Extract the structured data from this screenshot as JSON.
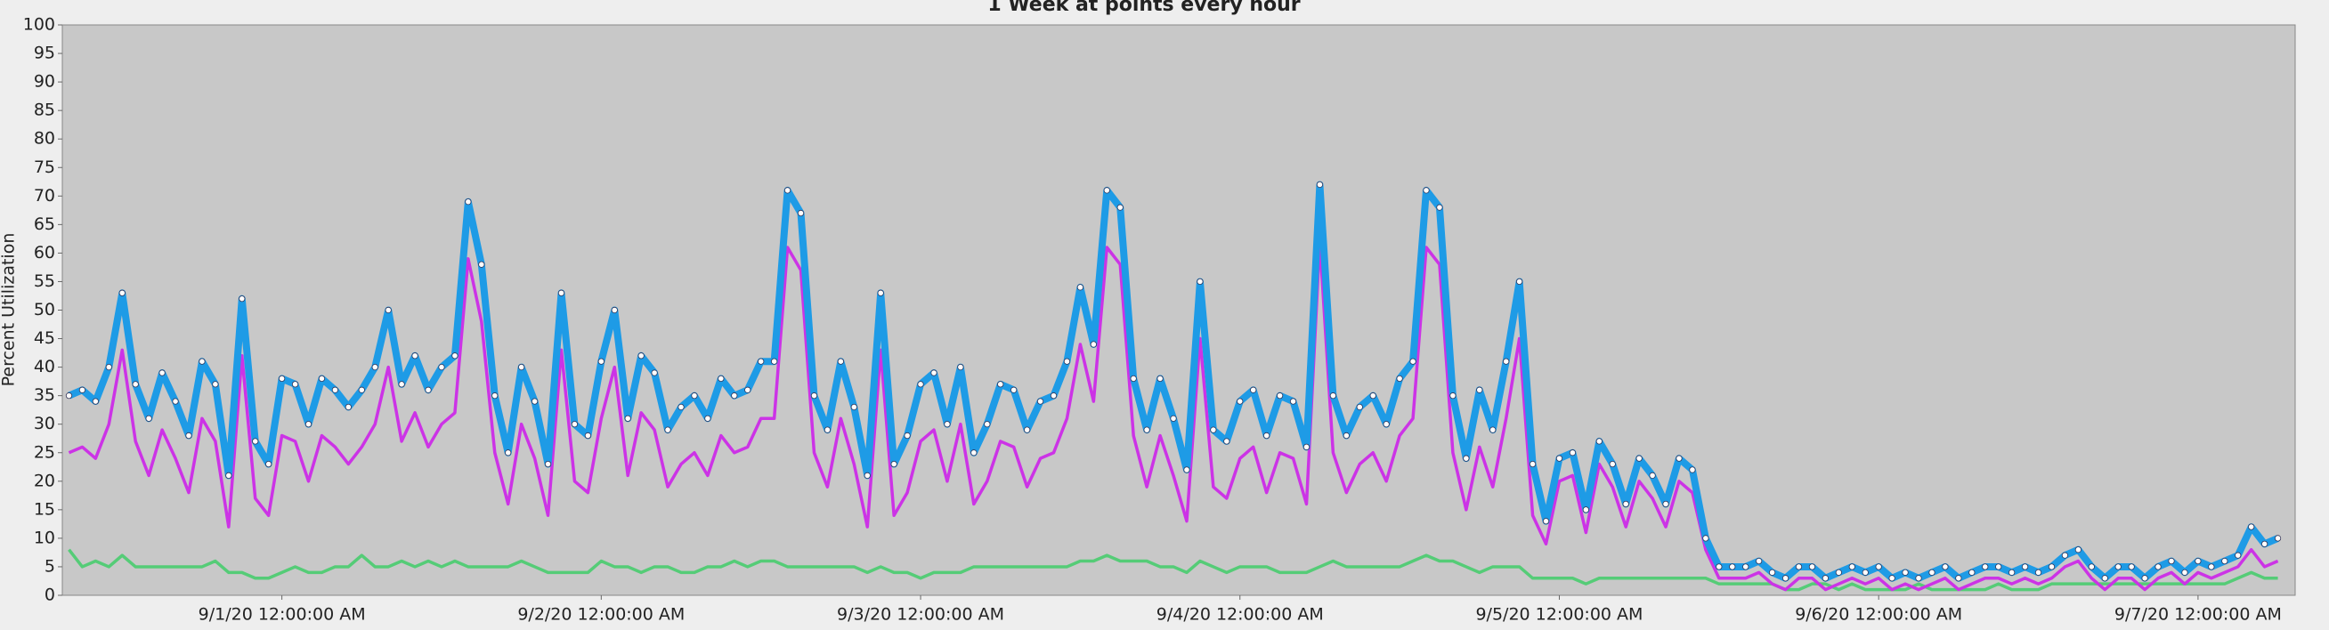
{
  "chart_data": {
    "type": "line",
    "title": "1 Week at points every hour",
    "y_label": "Percent Utilization",
    "x": [
      "2020-08-31T08:00",
      "2020-08-31T09:00",
      "2020-08-31T10:00",
      "2020-08-31T11:00",
      "2020-08-31T12:00",
      "2020-08-31T13:00",
      "2020-08-31T14:00",
      "2020-08-31T15:00",
      "2020-08-31T16:00",
      "2020-08-31T17:00",
      "2020-08-31T18:00",
      "2020-08-31T19:00",
      "2020-08-31T20:00",
      "2020-08-31T21:00",
      "2020-08-31T22:00",
      "2020-08-31T23:00",
      "2020-09-01T00:00",
      "2020-09-01T01:00",
      "2020-09-01T02:00",
      "2020-09-01T03:00",
      "2020-09-01T04:00",
      "2020-09-01T05:00",
      "2020-09-01T06:00",
      "2020-09-01T07:00",
      "2020-09-01T08:00",
      "2020-09-01T09:00",
      "2020-09-01T10:00",
      "2020-09-01T11:00",
      "2020-09-01T12:00",
      "2020-09-01T13:00",
      "2020-09-01T14:00",
      "2020-09-01T15:00",
      "2020-09-01T16:00",
      "2020-09-01T17:00",
      "2020-09-01T18:00",
      "2020-09-01T19:00",
      "2020-09-01T20:00",
      "2020-09-01T21:00",
      "2020-09-01T22:00",
      "2020-09-01T23:00",
      "2020-09-02T00:00",
      "2020-09-02T01:00",
      "2020-09-02T02:00",
      "2020-09-02T03:00",
      "2020-09-02T04:00",
      "2020-09-02T05:00",
      "2020-09-02T06:00",
      "2020-09-02T07:00",
      "2020-09-02T08:00",
      "2020-09-02T09:00",
      "2020-09-02T10:00",
      "2020-09-02T11:00",
      "2020-09-02T12:00",
      "2020-09-02T13:00",
      "2020-09-02T14:00",
      "2020-09-02T15:00",
      "2020-09-02T16:00",
      "2020-09-02T17:00",
      "2020-09-02T18:00",
      "2020-09-02T19:00",
      "2020-09-02T20:00",
      "2020-09-02T21:00",
      "2020-09-02T22:00",
      "2020-09-02T23:00",
      "2020-09-03T00:00",
      "2020-09-03T01:00",
      "2020-09-03T02:00",
      "2020-09-03T03:00",
      "2020-09-03T04:00",
      "2020-09-03T05:00",
      "2020-09-03T06:00",
      "2020-09-03T07:00",
      "2020-09-03T08:00",
      "2020-09-03T09:00",
      "2020-09-03T10:00",
      "2020-09-03T11:00",
      "2020-09-03T12:00",
      "2020-09-03T13:00",
      "2020-09-03T14:00",
      "2020-09-03T15:00",
      "2020-09-03T16:00",
      "2020-09-03T17:00",
      "2020-09-03T18:00",
      "2020-09-03T19:00",
      "2020-09-03T20:00",
      "2020-09-03T21:00",
      "2020-09-03T22:00",
      "2020-09-03T23:00",
      "2020-09-04T00:00",
      "2020-09-04T01:00",
      "2020-09-04T02:00",
      "2020-09-04T03:00",
      "2020-09-04T04:00",
      "2020-09-04T05:00",
      "2020-09-04T06:00",
      "2020-09-04T07:00",
      "2020-09-04T08:00",
      "2020-09-04T09:00",
      "2020-09-04T10:00",
      "2020-09-04T11:00",
      "2020-09-04T12:00",
      "2020-09-04T13:00",
      "2020-09-04T14:00",
      "2020-09-04T15:00",
      "2020-09-04T16:00",
      "2020-09-04T17:00",
      "2020-09-04T18:00",
      "2020-09-04T19:00",
      "2020-09-04T20:00",
      "2020-09-04T21:00",
      "2020-09-04T22:00",
      "2020-09-04T23:00",
      "2020-09-05T00:00",
      "2020-09-05T01:00",
      "2020-09-05T02:00",
      "2020-09-05T03:00",
      "2020-09-05T04:00",
      "2020-09-05T05:00",
      "2020-09-05T06:00",
      "2020-09-05T07:00",
      "2020-09-05T08:00",
      "2020-09-05T09:00",
      "2020-09-05T10:00",
      "2020-09-05T11:00",
      "2020-09-05T12:00",
      "2020-09-05T13:00",
      "2020-09-05T14:00",
      "2020-09-05T15:00",
      "2020-09-05T16:00",
      "2020-09-05T17:00",
      "2020-09-05T18:00",
      "2020-09-05T19:00",
      "2020-09-05T20:00",
      "2020-09-05T21:00",
      "2020-09-05T22:00",
      "2020-09-05T23:00",
      "2020-09-06T00:00",
      "2020-09-06T01:00",
      "2020-09-06T02:00",
      "2020-09-06T03:00",
      "2020-09-06T04:00",
      "2020-09-06T05:00",
      "2020-09-06T06:00",
      "2020-09-06T07:00",
      "2020-09-06T08:00",
      "2020-09-06T09:00",
      "2020-09-06T10:00",
      "2020-09-06T11:00",
      "2020-09-06T12:00",
      "2020-09-06T13:00",
      "2020-09-06T14:00",
      "2020-09-06T15:00",
      "2020-09-06T16:00",
      "2020-09-06T17:00",
      "2020-09-06T18:00",
      "2020-09-06T19:00",
      "2020-09-06T20:00",
      "2020-09-06T21:00",
      "2020-09-06T22:00",
      "2020-09-06T23:00",
      "2020-09-07T00:00",
      "2020-09-07T01:00",
      "2020-09-07T02:00",
      "2020-09-07T03:00",
      "2020-09-07T04:00",
      "2020-09-07T05:00",
      "2020-09-07T06:00"
    ],
    "series": [
      {
        "color": "#1e9be6",
        "markers": true,
        "values": [
          35,
          36,
          34,
          40,
          53,
          37,
          31,
          39,
          34,
          28,
          41,
          37,
          21,
          52,
          27,
          23,
          38,
          37,
          30,
          38,
          36,
          33,
          36,
          40,
          50,
          37,
          42,
          36,
          40,
          42,
          69,
          58,
          35,
          25,
          40,
          34,
          23,
          53,
          30,
          28,
          41,
          50,
          31,
          42,
          39,
          29,
          33,
          35,
          31,
          38,
          35,
          36,
          41,
          41,
          71,
          67,
          35,
          29,
          41,
          33,
          21,
          53,
          23,
          28,
          37,
          39,
          30,
          40,
          25,
          30,
          37,
          36,
          29,
          34,
          35,
          41,
          54,
          44,
          71,
          68,
          38,
          29,
          38,
          31,
          22,
          55,
          29,
          27,
          34,
          36,
          28,
          35,
          34,
          26,
          72,
          35,
          28,
          33,
          35,
          30,
          38,
          41,
          71,
          68,
          35,
          24,
          36,
          29,
          41,
          55,
          23,
          13,
          24,
          25,
          15,
          27,
          23,
          16,
          24,
          21,
          16,
          24,
          22,
          10,
          5,
          5,
          5,
          6,
          4,
          3,
          5,
          5,
          3,
          4,
          5,
          4,
          5,
          3,
          4,
          3,
          4,
          5,
          3,
          4,
          5,
          5,
          4,
          5,
          4,
          5,
          7,
          8,
          5,
          3,
          5,
          5,
          3,
          5,
          6,
          4,
          6,
          5,
          6,
          7,
          12,
          9,
          10
        ]
      },
      {
        "color": "#cc33e6",
        "markers": false,
        "values": [
          25,
          26,
          24,
          30,
          43,
          27,
          21,
          29,
          24,
          18,
          31,
          27,
          12,
          42,
          17,
          14,
          28,
          27,
          20,
          28,
          26,
          23,
          26,
          30,
          40,
          27,
          32,
          26,
          30,
          32,
          59,
          48,
          25,
          16,
          30,
          24,
          14,
          43,
          20,
          18,
          31,
          40,
          21,
          32,
          29,
          19,
          23,
          25,
          21,
          28,
          25,
          26,
          31,
          31,
          61,
          57,
          25,
          19,
          31,
          23,
          12,
          43,
          14,
          18,
          27,
          29,
          20,
          30,
          16,
          20,
          27,
          26,
          19,
          24,
          25,
          31,
          44,
          34,
          61,
          58,
          28,
          19,
          28,
          21,
          13,
          45,
          19,
          17,
          24,
          26,
          18,
          25,
          24,
          16,
          62,
          25,
          18,
          23,
          25,
          20,
          28,
          31,
          61,
          58,
          25,
          15,
          26,
          19,
          31,
          45,
          14,
          9,
          20,
          21,
          11,
          23,
          19,
          12,
          20,
          17,
          12,
          20,
          18,
          8,
          3,
          3,
          3,
          4,
          2,
          1,
          3,
          3,
          1,
          2,
          3,
          2,
          3,
          1,
          2,
          1,
          2,
          3,
          1,
          2,
          3,
          3,
          2,
          3,
          2,
          3,
          5,
          6,
          3,
          1,
          3,
          3,
          1,
          3,
          4,
          2,
          4,
          3,
          4,
          5,
          8,
          5,
          6
        ]
      },
      {
        "color": "#55cc77",
        "markers": false,
        "values": [
          8,
          5,
          6,
          5,
          7,
          5,
          5,
          5,
          5,
          5,
          5,
          6,
          4,
          4,
          3,
          3,
          4,
          5,
          4,
          4,
          5,
          5,
          7,
          5,
          5,
          6,
          5,
          6,
          5,
          6,
          5,
          5,
          5,
          5,
          6,
          5,
          4,
          4,
          4,
          4,
          6,
          5,
          5,
          4,
          5,
          5,
          4,
          4,
          5,
          5,
          6,
          5,
          6,
          6,
          5,
          5,
          5,
          5,
          5,
          5,
          4,
          5,
          4,
          4,
          3,
          4,
          4,
          4,
          5,
          5,
          5,
          5,
          5,
          5,
          5,
          5,
          6,
          6,
          7,
          6,
          6,
          6,
          5,
          5,
          4,
          6,
          5,
          4,
          5,
          5,
          5,
          4,
          4,
          4,
          5,
          6,
          5,
          5,
          5,
          5,
          5,
          6,
          7,
          6,
          6,
          5,
          4,
          5,
          5,
          5,
          3,
          3,
          3,
          3,
          2,
          3,
          3,
          3,
          3,
          3,
          3,
          3,
          3,
          3,
          2,
          2,
          2,
          2,
          2,
          1,
          1,
          2,
          2,
          1,
          2,
          1,
          1,
          1,
          1,
          2,
          1,
          1,
          1,
          1,
          1,
          2,
          1,
          1,
          1,
          2,
          2,
          2,
          2,
          2,
          2,
          2,
          2,
          2,
          2,
          2,
          2,
          2,
          2,
          3,
          4,
          3,
          3
        ]
      }
    ],
    "xlim": [
      "2020-08-31T07:30",
      "2020-09-07T07:18"
    ],
    "xticks": [
      {
        "value": "2020-09-01T00:00",
        "label": "9/1/20 12:00:00 AM"
      },
      {
        "value": "2020-09-02T00:00",
        "label": "9/2/20 12:00:00 AM"
      },
      {
        "value": "2020-09-03T00:00",
        "label": "9/3/20 12:00:00 AM"
      },
      {
        "value": "2020-09-04T00:00",
        "label": "9/4/20 12:00:00 AM"
      },
      {
        "value": "2020-09-05T00:00",
        "label": "9/5/20 12:00:00 AM"
      },
      {
        "value": "2020-09-06T00:00",
        "label": "9/6/20 12:00:00 AM"
      },
      {
        "value": "2020-09-07T00:00",
        "label": "9/7/20 12:00:00 AM"
      }
    ],
    "ylim": [
      0,
      100
    ],
    "yticks": [
      0,
      5,
      10,
      15,
      20,
      25,
      30,
      35,
      40,
      45,
      50,
      55,
      60,
      65,
      70,
      75,
      80,
      85,
      90,
      95,
      100
    ],
    "grid": false
  }
}
